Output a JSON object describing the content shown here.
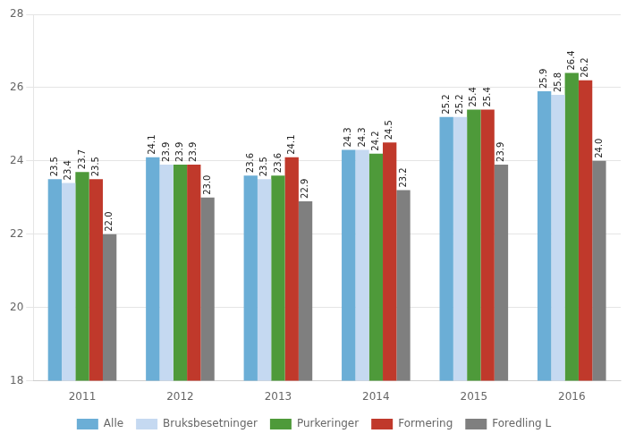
{
  "chart_data": {
    "type": "bar",
    "categories": [
      "2011",
      "2012",
      "2013",
      "2014",
      "2015",
      "2016"
    ],
    "series": [
      {
        "name": "Alle",
        "color": "#6baed6",
        "values": [
          23.5,
          24.1,
          23.6,
          24.3,
          25.2,
          25.9
        ],
        "value_labels": [
          "23.5",
          "24.1",
          "23.6",
          "24.3",
          "25.2",
          "25.9"
        ]
      },
      {
        "name": "Bruksbesetninger",
        "color": "#c5d9f1",
        "values": [
          23.4,
          23.9,
          23.5,
          24.3,
          25.2,
          25.8
        ],
        "value_labels": [
          "23.4",
          "23.9",
          "23.5",
          "24.3",
          "25.2",
          "25.8"
        ]
      },
      {
        "name": "Purkeringer",
        "color": "#4e9a3a",
        "values": [
          23.7,
          23.9,
          23.6,
          24.2,
          25.4,
          26.4
        ],
        "value_labels": [
          "23.7",
          "23.9",
          "23.6",
          "24.2",
          "25.4",
          "26.4"
        ]
      },
      {
        "name": "Formering",
        "color": "#c0392b",
        "values": [
          23.5,
          23.9,
          24.1,
          24.5,
          25.4,
          26.2
        ],
        "value_labels": [
          "23.5",
          "23.9",
          "24.1",
          "24.5",
          "25.4",
          "26.2"
        ]
      },
      {
        "name": "Foredling L",
        "color": "#7f7f7f",
        "values": [
          22.0,
          23.0,
          22.9,
          23.2,
          23.9,
          24.0
        ],
        "value_labels": [
          "22.0",
          "23.0",
          "22.9",
          "23.2",
          "23.9",
          "24.0"
        ]
      }
    ],
    "ylim": [
      18,
      28
    ],
    "yticks": [
      18,
      20,
      22,
      24,
      26,
      28
    ],
    "grid": true,
    "legend": "bottom",
    "data_labels": true
  }
}
